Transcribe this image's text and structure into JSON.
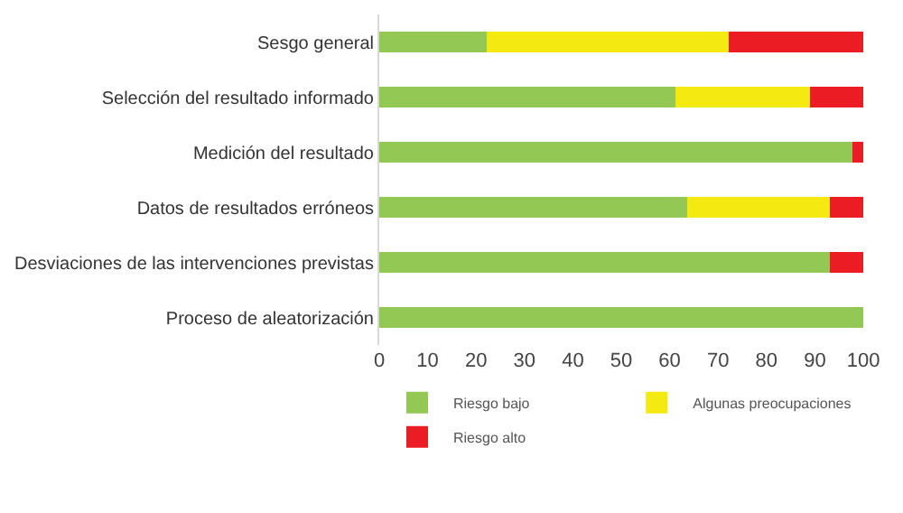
{
  "chart_data": {
    "type": "bar",
    "orientation": "horizontal",
    "stacked": true,
    "categories": [
      "Sesgo general",
      "Selección del resultado informado",
      "Medición del resultado",
      "Datos de resultados erróneos",
      "Desviaciones de las intervenciones previstas",
      "Proceso de aleatorización"
    ],
    "series": [
      {
        "name": "Riesgo bajo",
        "color": "#92c853",
        "values": [
          22.2,
          61.1,
          97.7,
          63.6,
          93.1,
          100
        ]
      },
      {
        "name": "Algunas preocupaciones",
        "color": "#f5e912",
        "values": [
          50,
          27.8,
          0,
          29.5,
          0,
          0
        ]
      },
      {
        "name": "Riesgo alto",
        "color": "#ec1c24",
        "values": [
          27.8,
          11.1,
          2.3,
          6.9,
          6.9,
          0
        ]
      }
    ],
    "xlim": [
      0,
      100
    ],
    "xticks": [
      0,
      10,
      20,
      30,
      40,
      50,
      60,
      70,
      80,
      90,
      100
    ],
    "legend": "bottom"
  }
}
